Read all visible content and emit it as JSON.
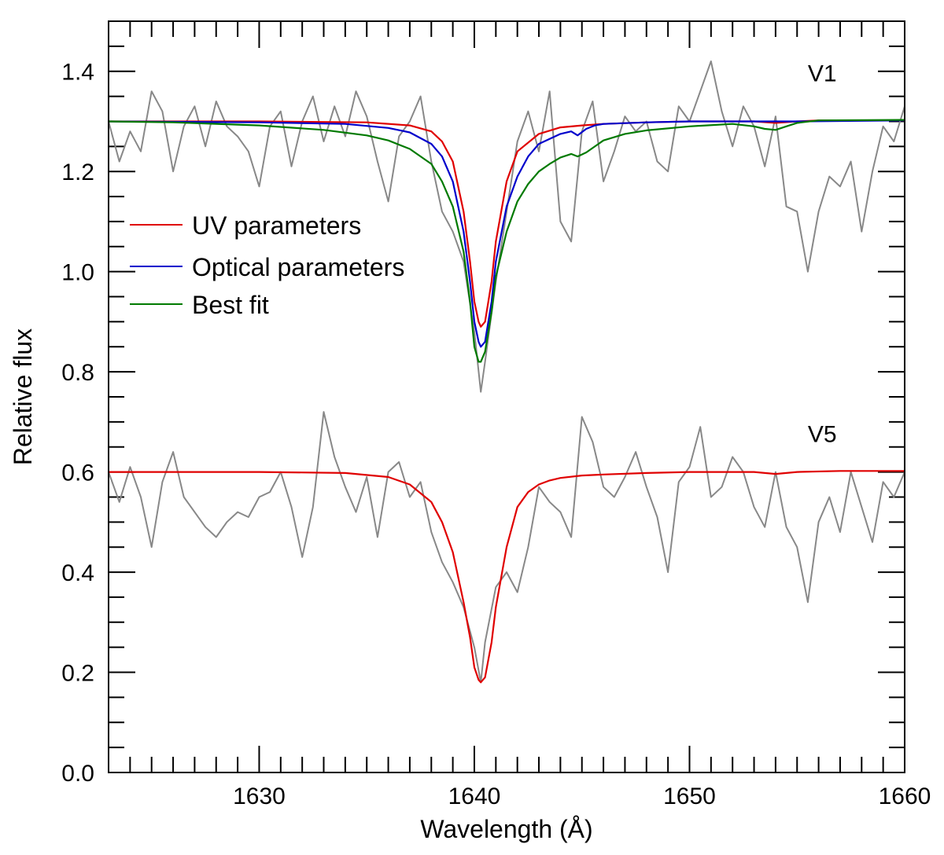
{
  "chart_data": {
    "type": "line",
    "title": "",
    "xlabel": "Wavelength (Å)",
    "ylabel": "Relative flux",
    "xlim": [
      1623,
      1660
    ],
    "ylim": [
      0.0,
      1.5
    ],
    "xticks": [
      1630,
      1640,
      1650,
      1660
    ],
    "xtick_labels": [
      "1630",
      "1640",
      "1650",
      "1660"
    ],
    "yticks": [
      0.0,
      0.2,
      0.4,
      0.6,
      0.8,
      1.0,
      1.2,
      1.4
    ],
    "ytick_labels": [
      "0.0",
      "0.2",
      "0.4",
      "0.6",
      "0.8",
      "1.0",
      "1.2",
      "1.4"
    ],
    "x_minor_step": 1,
    "y_minor_step": 0.05,
    "grid": false,
    "legend_position": "center-left",
    "legend": [
      {
        "label": "UV parameters",
        "color": "#e00000"
      },
      {
        "label": "Optical parameters",
        "color": "#0000cc"
      },
      {
        "label": "Best fit",
        "color": "#007a00"
      }
    ],
    "annotations": [
      {
        "text": "V1",
        "x": 1655.5,
        "y": 1.38
      },
      {
        "text": "V5",
        "x": 1655.5,
        "y": 0.66
      }
    ],
    "series": [
      {
        "name": "V1 observed",
        "color": "#888888",
        "x": [
          1623.0,
          1623.5,
          1624.0,
          1624.5,
          1625.0,
          1625.5,
          1626.0,
          1626.5,
          1627.0,
          1627.5,
          1628.0,
          1628.5,
          1629.0,
          1629.5,
          1630.0,
          1630.5,
          1631.0,
          1631.5,
          1632.0,
          1632.5,
          1633.0,
          1633.5,
          1634.0,
          1634.5,
          1635.0,
          1635.5,
          1636.0,
          1636.5,
          1637.0,
          1637.5,
          1638.0,
          1638.5,
          1639.0,
          1639.5,
          1640.0,
          1640.3,
          1640.5,
          1641.0,
          1641.5,
          1642.0,
          1642.5,
          1643.0,
          1643.5,
          1644.0,
          1644.5,
          1645.0,
          1645.5,
          1646.0,
          1646.5,
          1647.0,
          1647.5,
          1648.0,
          1648.5,
          1649.0,
          1649.5,
          1650.0,
          1650.5,
          1651.0,
          1651.5,
          1652.0,
          1652.5,
          1653.0,
          1653.5,
          1654.0,
          1654.5,
          1655.0,
          1655.5,
          1656.0,
          1656.5,
          1657.0,
          1657.5,
          1658.0,
          1658.5,
          1659.0,
          1659.5,
          1660.0
        ],
        "y": [
          1.3,
          1.22,
          1.28,
          1.24,
          1.36,
          1.32,
          1.2,
          1.29,
          1.33,
          1.25,
          1.34,
          1.29,
          1.27,
          1.24,
          1.17,
          1.29,
          1.32,
          1.21,
          1.3,
          1.35,
          1.26,
          1.33,
          1.27,
          1.36,
          1.31,
          1.22,
          1.14,
          1.27,
          1.3,
          1.35,
          1.22,
          1.12,
          1.08,
          1.02,
          0.88,
          0.76,
          0.82,
          0.98,
          1.12,
          1.26,
          1.32,
          1.24,
          1.36,
          1.1,
          1.06,
          1.28,
          1.34,
          1.18,
          1.24,
          1.31,
          1.28,
          1.3,
          1.22,
          1.2,
          1.33,
          1.3,
          1.36,
          1.42,
          1.32,
          1.25,
          1.33,
          1.29,
          1.21,
          1.31,
          1.13,
          1.12,
          1.0,
          1.12,
          1.19,
          1.17,
          1.22,
          1.08,
          1.2,
          1.29,
          1.26,
          1.33
        ]
      },
      {
        "name": "V1 UV parameters",
        "color": "#e00000",
        "x": [
          1623,
          1630,
          1635,
          1637,
          1638,
          1638.5,
          1639,
          1639.5,
          1639.8,
          1640.0,
          1640.2,
          1640.3,
          1640.5,
          1640.8,
          1641.0,
          1641.5,
          1642.0,
          1643.0,
          1644.0,
          1645.0,
          1646.0,
          1648.0,
          1650.0,
          1653.0,
          1654.0,
          1655.0,
          1656.0,
          1660.0
        ],
        "y": [
          1.3,
          1.3,
          1.298,
          1.292,
          1.28,
          1.26,
          1.22,
          1.12,
          1.02,
          0.94,
          0.9,
          0.89,
          0.9,
          0.98,
          1.06,
          1.18,
          1.24,
          1.275,
          1.288,
          1.292,
          1.295,
          1.298,
          1.3,
          1.3,
          1.297,
          1.3,
          1.302,
          1.302
        ]
      },
      {
        "name": "V1 Optical parameters",
        "color": "#0000cc",
        "x": [
          1623,
          1630,
          1634,
          1636,
          1637,
          1638,
          1638.5,
          1639,
          1639.5,
          1639.8,
          1640.0,
          1640.2,
          1640.3,
          1640.5,
          1640.8,
          1641.0,
          1641.5,
          1642.0,
          1642.5,
          1643.0,
          1644.0,
          1644.5,
          1644.8,
          1645.2,
          1645.6,
          1646.0,
          1648.0,
          1650.0,
          1655.0,
          1660.0
        ],
        "y": [
          1.3,
          1.298,
          1.295,
          1.287,
          1.278,
          1.255,
          1.23,
          1.18,
          1.08,
          0.98,
          0.9,
          0.86,
          0.85,
          0.86,
          0.94,
          1.02,
          1.13,
          1.19,
          1.23,
          1.255,
          1.275,
          1.28,
          1.272,
          1.285,
          1.292,
          1.295,
          1.298,
          1.3,
          1.3,
          1.302
        ]
      },
      {
        "name": "V1 Best fit",
        "color": "#007a00",
        "x": [
          1623,
          1626,
          1630,
          1633,
          1635,
          1636,
          1637,
          1638,
          1638.5,
          1639,
          1639.5,
          1639.8,
          1640.0,
          1640.2,
          1640.3,
          1640.5,
          1640.8,
          1641.0,
          1641.5,
          1642.0,
          1642.5,
          1643.0,
          1643.5,
          1644.0,
          1644.5,
          1644.8,
          1645.2,
          1646.0,
          1647.0,
          1648.0,
          1650.0,
          1652.0,
          1653.0,
          1653.5,
          1654.0,
          1654.5,
          1655.0,
          1656.0,
          1660.0
        ],
        "y": [
          1.3,
          1.298,
          1.292,
          1.283,
          1.272,
          1.262,
          1.245,
          1.215,
          1.18,
          1.13,
          1.04,
          0.94,
          0.85,
          0.82,
          0.82,
          0.84,
          0.92,
          0.99,
          1.08,
          1.14,
          1.175,
          1.2,
          1.215,
          1.228,
          1.235,
          1.23,
          1.238,
          1.262,
          1.275,
          1.282,
          1.29,
          1.295,
          1.29,
          1.285,
          1.283,
          1.29,
          1.297,
          1.302,
          1.303
        ]
      },
      {
        "name": "V5 observed",
        "color": "#888888",
        "x": [
          1623.0,
          1623.5,
          1624.0,
          1624.5,
          1625.0,
          1625.5,
          1626.0,
          1626.5,
          1627.0,
          1627.5,
          1628.0,
          1628.5,
          1629.0,
          1629.5,
          1630.0,
          1630.5,
          1631.0,
          1631.5,
          1632.0,
          1632.5,
          1633.0,
          1633.5,
          1634.0,
          1634.5,
          1635.0,
          1635.5,
          1636.0,
          1636.5,
          1637.0,
          1637.5,
          1638.0,
          1638.5,
          1639.0,
          1639.5,
          1640.0,
          1640.3,
          1640.5,
          1641.0,
          1641.5,
          1642.0,
          1642.5,
          1643.0,
          1643.5,
          1644.0,
          1644.5,
          1645.0,
          1645.5,
          1646.0,
          1646.5,
          1647.0,
          1647.5,
          1648.0,
          1648.5,
          1649.0,
          1649.5,
          1650.0,
          1650.5,
          1651.0,
          1651.5,
          1652.0,
          1652.5,
          1653.0,
          1653.5,
          1654.0,
          1654.5,
          1655.0,
          1655.5,
          1656.0,
          1656.5,
          1657.0,
          1657.5,
          1658.0,
          1658.5,
          1659.0,
          1659.5,
          1660.0
        ],
        "y": [
          0.6,
          0.54,
          0.61,
          0.55,
          0.45,
          0.58,
          0.64,
          0.55,
          0.52,
          0.49,
          0.47,
          0.5,
          0.52,
          0.51,
          0.55,
          0.56,
          0.6,
          0.53,
          0.43,
          0.53,
          0.72,
          0.63,
          0.57,
          0.52,
          0.59,
          0.47,
          0.6,
          0.62,
          0.55,
          0.58,
          0.48,
          0.42,
          0.38,
          0.33,
          0.25,
          0.18,
          0.26,
          0.37,
          0.4,
          0.36,
          0.45,
          0.57,
          0.54,
          0.52,
          0.47,
          0.71,
          0.66,
          0.57,
          0.55,
          0.59,
          0.64,
          0.57,
          0.51,
          0.4,
          0.58,
          0.61,
          0.69,
          0.55,
          0.57,
          0.63,
          0.6,
          0.53,
          0.49,
          0.6,
          0.49,
          0.45,
          0.34,
          0.5,
          0.55,
          0.48,
          0.6,
          0.53,
          0.46,
          0.58,
          0.55,
          0.6
        ]
      },
      {
        "name": "V5 UV parameters",
        "color": "#e00000",
        "x": [
          1623,
          1630,
          1634,
          1636,
          1637,
          1638,
          1638.5,
          1639,
          1639.5,
          1639.8,
          1640.0,
          1640.2,
          1640.3,
          1640.5,
          1640.8,
          1641.0,
          1641.5,
          1642.0,
          1642.5,
          1643.0,
          1643.5,
          1644.0,
          1645.0,
          1646.0,
          1648.0,
          1650.0,
          1653.0,
          1654.0,
          1655.0,
          1657.0,
          1660.0
        ],
        "y": [
          0.6,
          0.6,
          0.598,
          0.59,
          0.575,
          0.54,
          0.5,
          0.44,
          0.34,
          0.27,
          0.21,
          0.185,
          0.18,
          0.19,
          0.26,
          0.33,
          0.45,
          0.53,
          0.56,
          0.575,
          0.583,
          0.588,
          0.593,
          0.595,
          0.598,
          0.6,
          0.6,
          0.596,
          0.6,
          0.602,
          0.602
        ]
      }
    ]
  }
}
